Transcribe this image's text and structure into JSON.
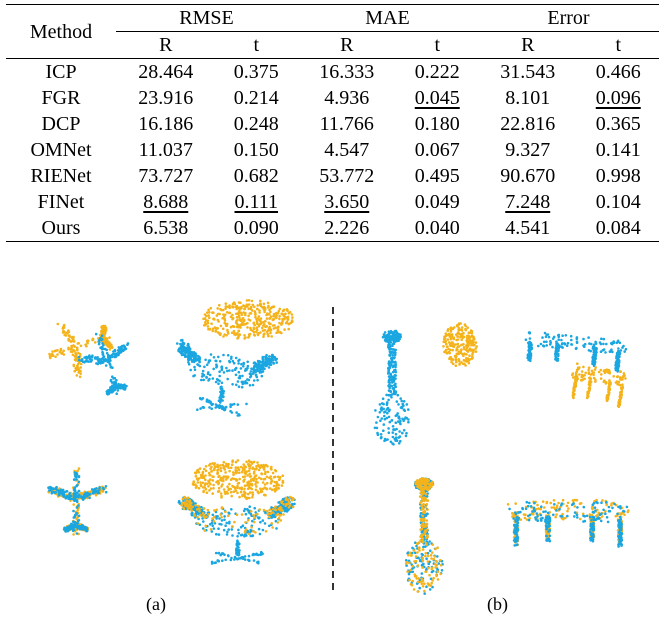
{
  "table": {
    "method_header": "Method",
    "groups": [
      "RMSE",
      "MAE",
      "Error"
    ],
    "subheaders": [
      "R",
      "t",
      "R",
      "t",
      "R",
      "t"
    ],
    "rows": [
      {
        "method": "ICP",
        "values": [
          "28.464",
          "0.375",
          "16.333",
          "0.222",
          "31.543",
          "0.466"
        ],
        "bold": [],
        "underline": []
      },
      {
        "method": "FGR",
        "values": [
          "23.916",
          "0.214",
          "4.936",
          "0.045",
          "8.101",
          "0.096"
        ],
        "bold": [],
        "underline": [
          3,
          5
        ]
      },
      {
        "method": "DCP",
        "values": [
          "16.186",
          "0.248",
          "11.766",
          "0.180",
          "22.816",
          "0.365"
        ],
        "bold": [],
        "underline": []
      },
      {
        "method": "OMNet",
        "values": [
          "11.037",
          "0.150",
          "4.547",
          "0.067",
          "9.327",
          "0.141"
        ],
        "bold": [],
        "underline": []
      },
      {
        "method": "RIENet",
        "values": [
          "73.727",
          "0.682",
          "53.772",
          "0.495",
          "90.670",
          "0.998"
        ],
        "bold": [],
        "underline": []
      },
      {
        "method": "FINet",
        "values": [
          "8.688",
          "0.111",
          "3.650",
          "0.049",
          "7.248",
          "0.104"
        ],
        "bold": [],
        "underline": [
          0,
          1,
          2,
          4
        ]
      },
      {
        "method": "Ours",
        "values": [
          "6.538",
          "0.090",
          "2.226",
          "0.040",
          "4.541",
          "0.084"
        ],
        "bold": [
          0,
          1,
          2,
          3,
          4,
          5
        ],
        "underline": []
      }
    ]
  },
  "figure": {
    "caption_a": "(a)",
    "caption_b": "(b)",
    "colors": {
      "source": "#f5b31b",
      "target": "#1aa6e0",
      "divider": "#333333"
    },
    "objects": [
      "airplane-before",
      "chair-before",
      "airplane-after",
      "chair-after",
      "vase-before",
      "table-before",
      "vase-after",
      "table-after"
    ]
  }
}
